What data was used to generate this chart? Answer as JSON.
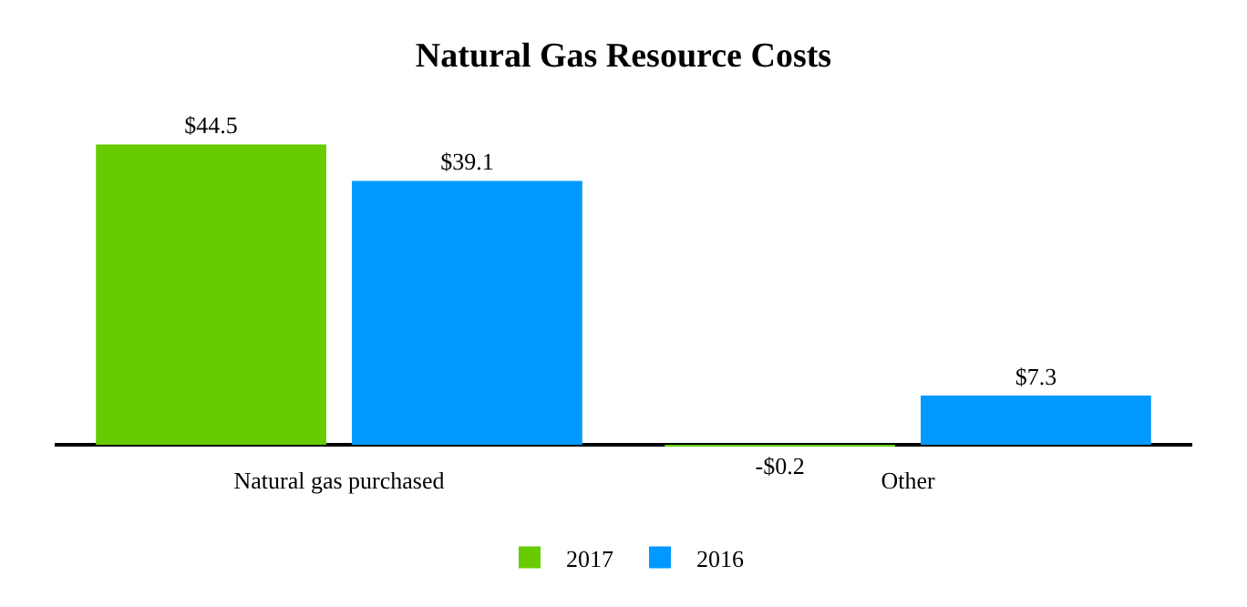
{
  "chart_data": {
    "type": "bar",
    "title": "Natural Gas Resource Costs",
    "categories": [
      "Natural gas purchased",
      "Other"
    ],
    "series": [
      {
        "name": "2017",
        "color": "#66cc00",
        "values": [
          44.5,
          -0.2
        ],
        "value_labels": [
          "$44.5",
          "-$0.2"
        ]
      },
      {
        "name": "2016",
        "color": "#0099ff",
        "values": [
          39.1,
          7.3
        ],
        "value_labels": [
          "$39.1",
          "$7.3"
        ]
      }
    ],
    "legend": "bottom",
    "tick_labels": "x"
  }
}
